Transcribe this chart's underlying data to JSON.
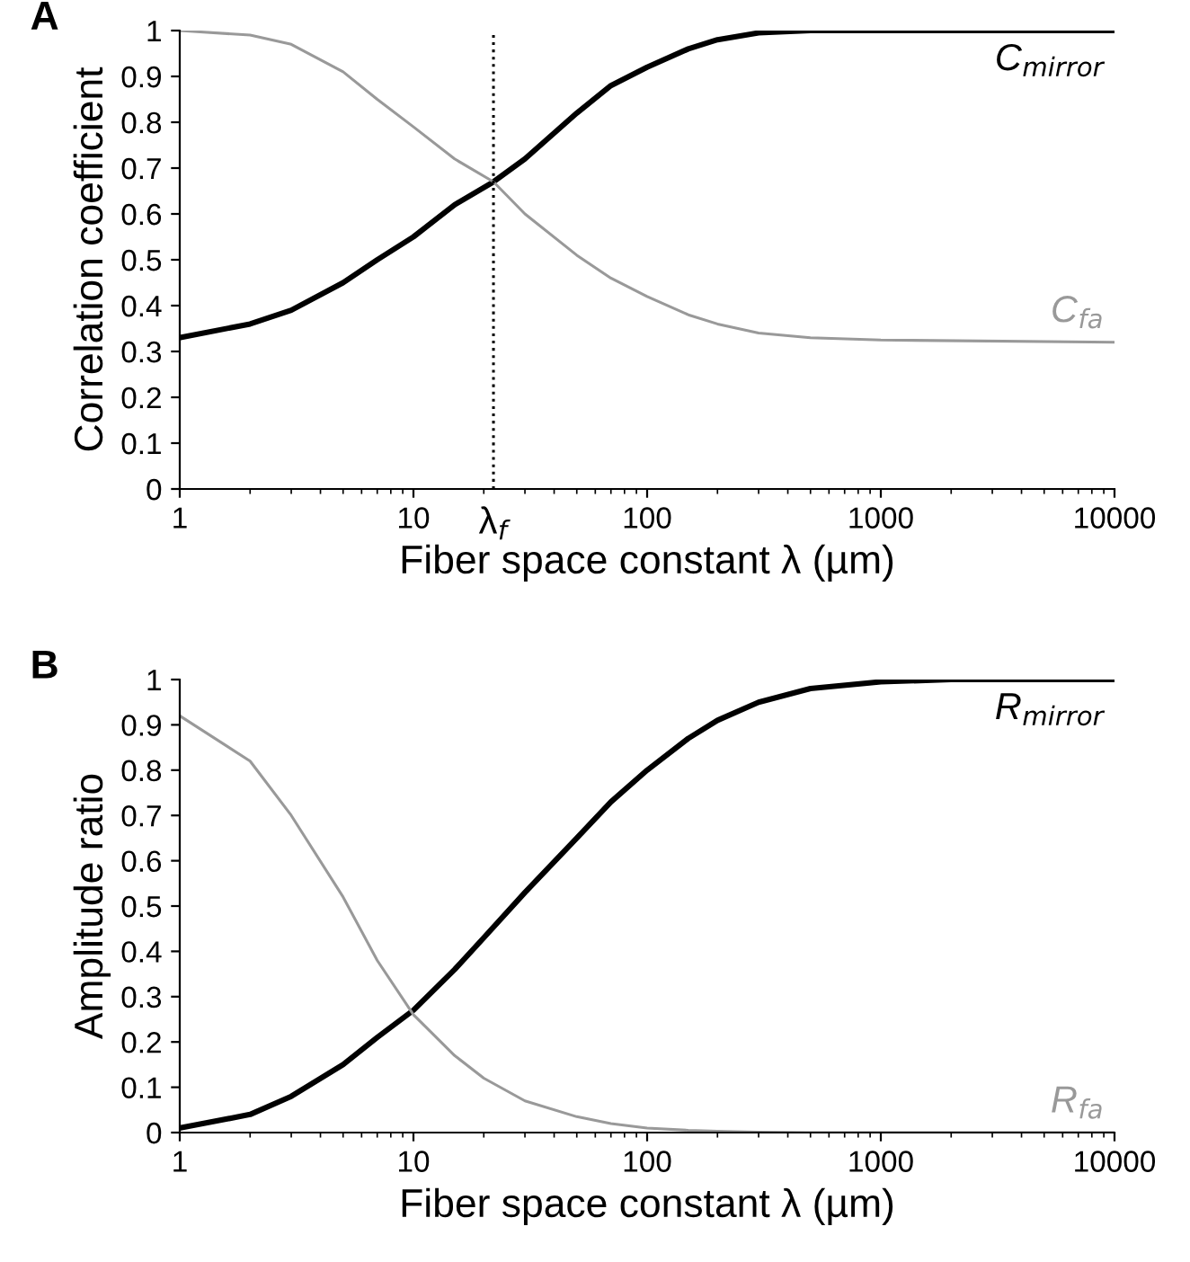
{
  "chart_data": [
    {
      "type": "line",
      "title": "A",
      "xlabel": "Fiber space constant λ (µm)",
      "ylabel": "Correlation coefficient",
      "log": "x",
      "xlim": [
        1,
        10000
      ],
      "xticks": [
        1,
        10,
        100,
        1000,
        10000
      ],
      "ylim": [
        0,
        1
      ],
      "yticks": [
        0,
        0.1,
        0.2,
        0.3,
        0.4,
        0.5,
        0.6,
        0.7,
        0.8,
        0.9,
        1
      ],
      "grid": false,
      "legend": false,
      "marker": "none",
      "line_style": "solid",
      "x": [
        1,
        2,
        3,
        5,
        7,
        10,
        15,
        22,
        30,
        50,
        70,
        100,
        150,
        200,
        300,
        500,
        1000,
        10000
      ],
      "series": [
        {
          "name": "C$_{mirror}$",
          "color": "#000000",
          "values": [
            0.33,
            0.36,
            0.39,
            0.45,
            0.5,
            0.55,
            0.62,
            0.67,
            0.72,
            0.82,
            0.88,
            0.92,
            0.96,
            0.98,
            0.995,
            1,
            1,
            1
          ]
        },
        {
          "name": "C$_{fa}$",
          "color": "#999999",
          "values": [
            1,
            0.99,
            0.97,
            0.91,
            0.85,
            0.79,
            0.72,
            0.67,
            0.6,
            0.51,
            0.46,
            0.42,
            0.38,
            0.36,
            0.34,
            0.33,
            0.325,
            0.32
          ]
        }
      ],
      "ref_lines": [
        {
          "axis": "x",
          "value": 22,
          "label": "λ$_{f}$",
          "line_style": "dotted",
          "color": "#000000"
        }
      ]
    },
    {
      "type": "line",
      "title": "B",
      "xlabel": "Fiber space constant λ (µm)",
      "ylabel": "Amplitude ratio",
      "log": "x",
      "xlim": [
        1,
        10000
      ],
      "xticks": [
        1,
        10,
        100,
        1000,
        10000
      ],
      "ylim": [
        0,
        1
      ],
      "yticks": [
        0,
        0.1,
        0.2,
        0.3,
        0.4,
        0.5,
        0.6,
        0.7,
        0.8,
        0.9,
        1
      ],
      "grid": false,
      "legend": false,
      "marker": "none",
      "line_style": "solid",
      "x": [
        1,
        2,
        3,
        5,
        7,
        10,
        15,
        20,
        30,
        50,
        70,
        100,
        150,
        200,
        300,
        500,
        1000,
        2000,
        10000
      ],
      "series": [
        {
          "name": "R$_{mirror}$",
          "color": "#000000",
          "values": [
            0.01,
            0.04,
            0.08,
            0.15,
            0.21,
            0.27,
            0.36,
            0.43,
            0.53,
            0.65,
            0.73,
            0.8,
            0.87,
            0.91,
            0.95,
            0.98,
            0.995,
            1,
            1
          ]
        },
        {
          "name": "R$_{fa}$",
          "color": "#999999",
          "values": [
            0.92,
            0.82,
            0.7,
            0.52,
            0.38,
            0.26,
            0.17,
            0.12,
            0.07,
            0.035,
            0.02,
            0.01,
            0.005,
            0.003,
            0.001,
            0,
            0,
            0,
            0
          ]
        }
      ]
    }
  ]
}
